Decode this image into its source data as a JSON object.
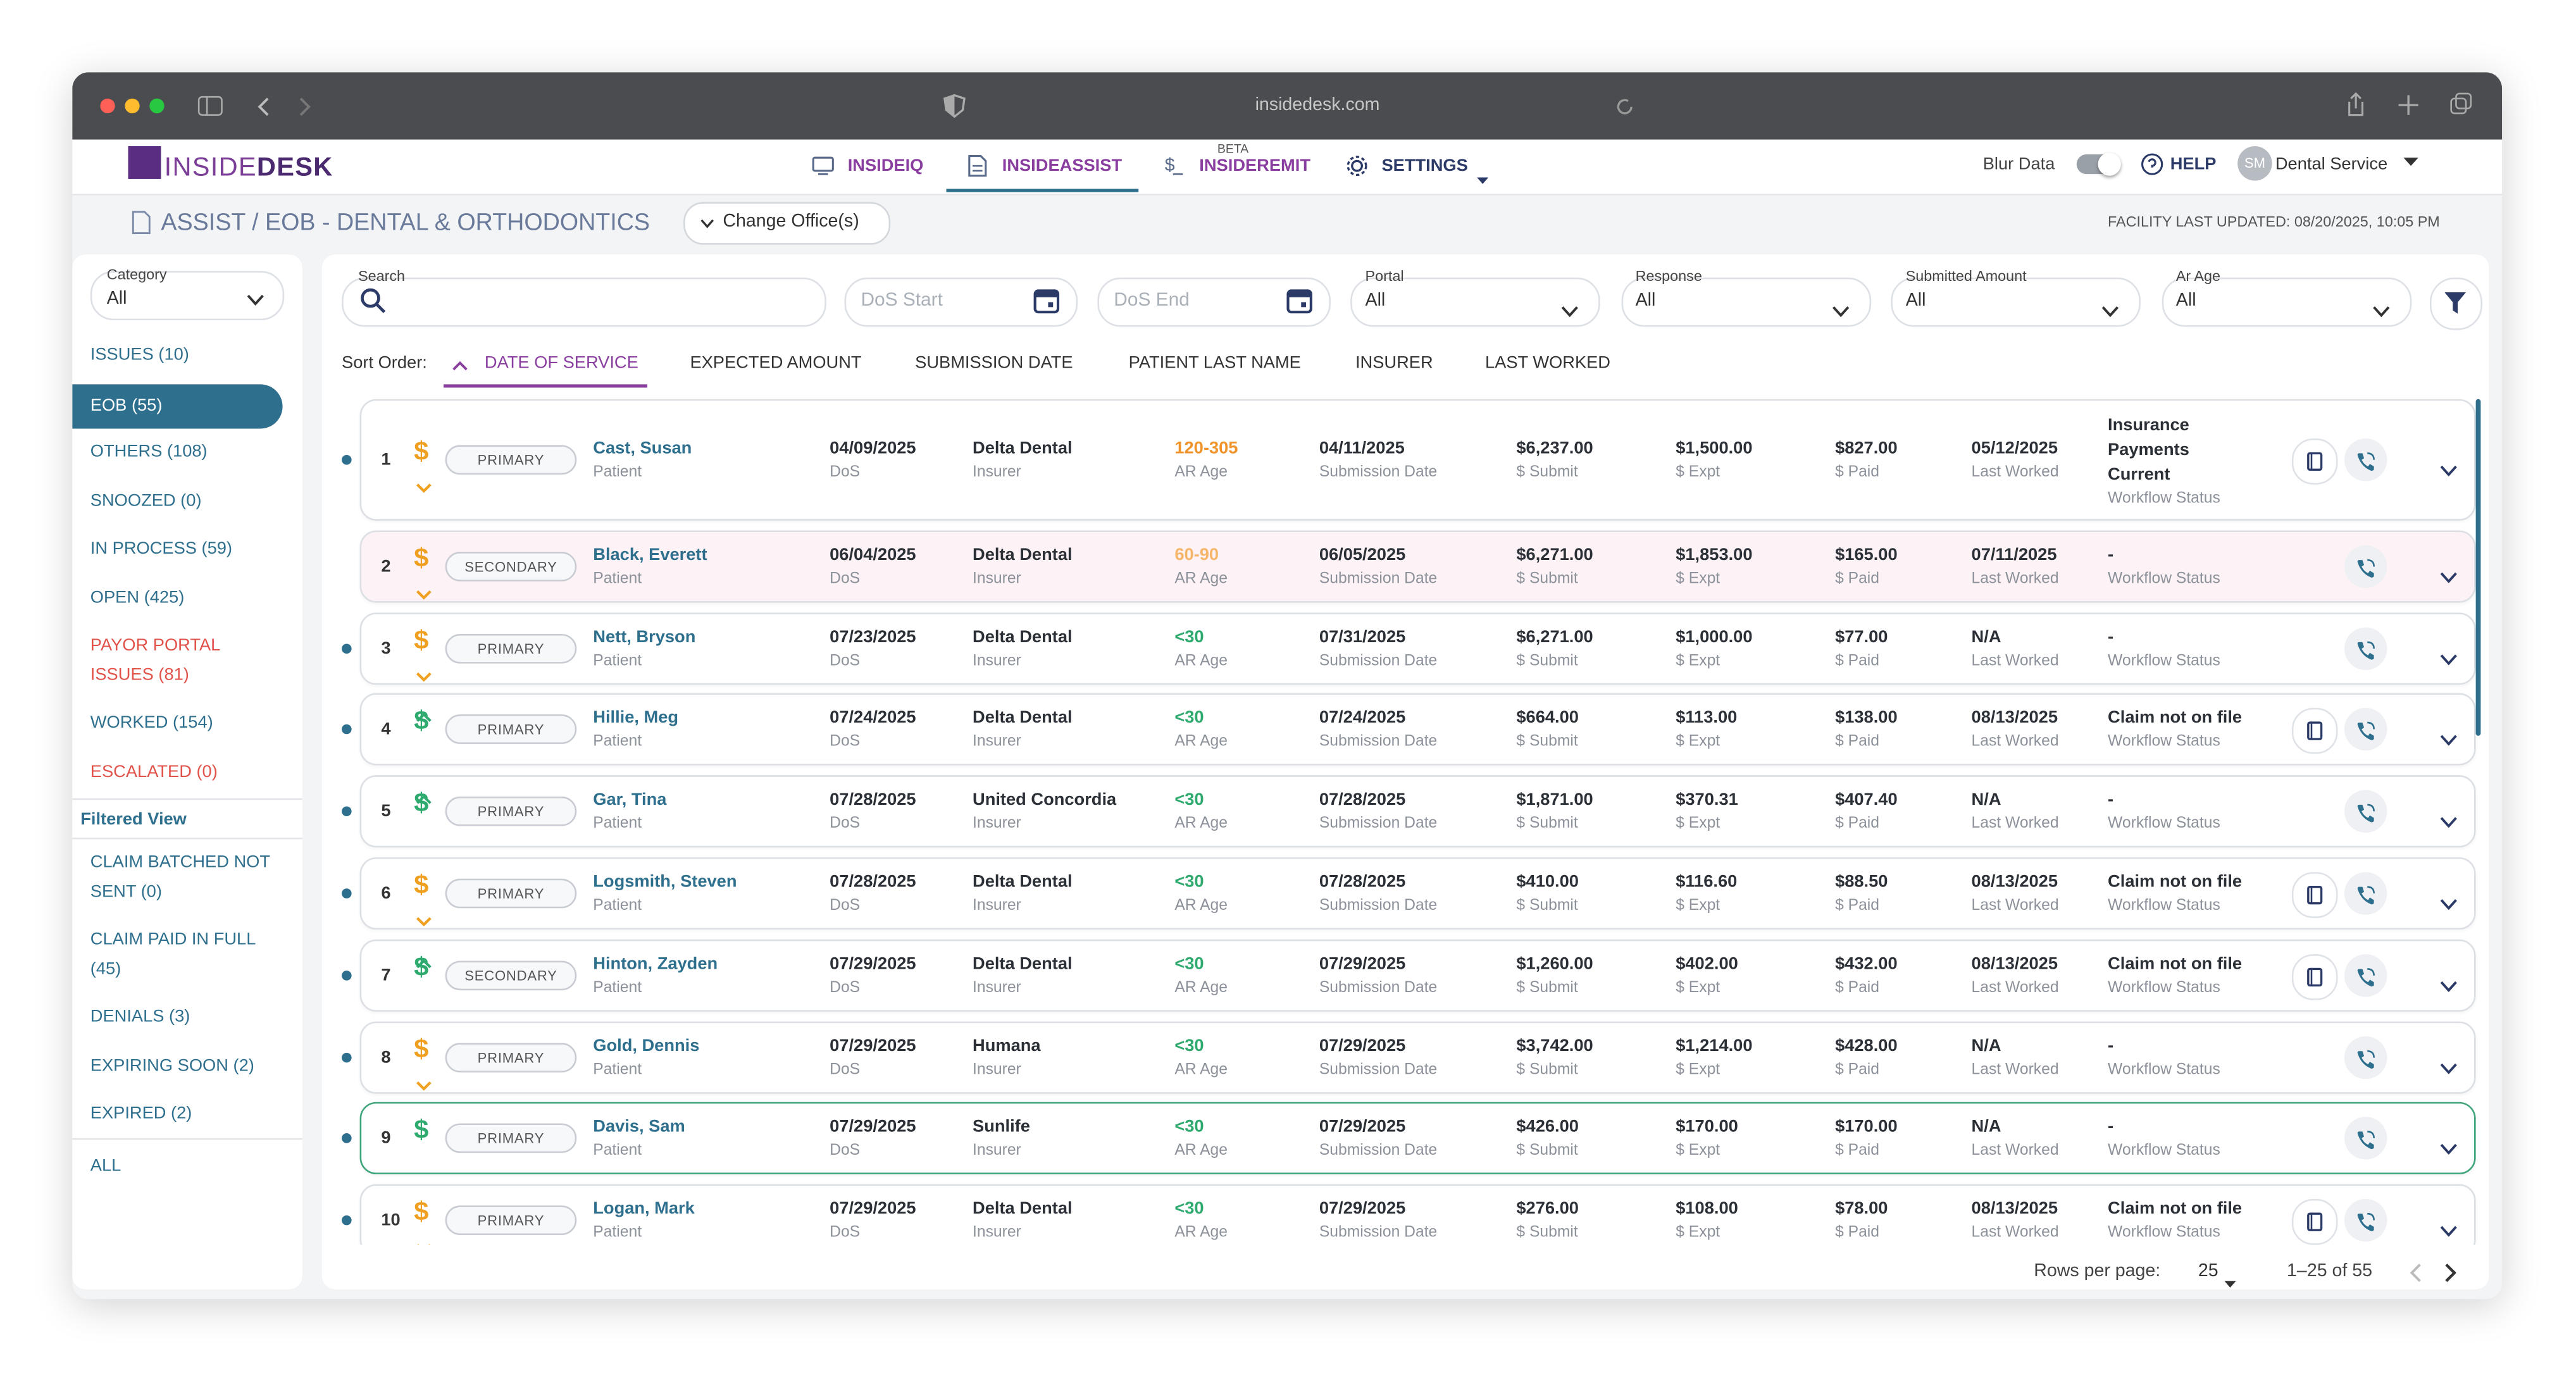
{
  "browser": {
    "url": "insidedesk.com"
  },
  "nav": {
    "logo": [
      "INSIDE",
      "DESK"
    ],
    "tabs": [
      "INSIDEIQ",
      "INSIDEASSIST",
      "INSIDEREMIT",
      "SETTINGS"
    ],
    "beta": "BETA",
    "blur": "Blur Data",
    "help": "HELP",
    "avatar": "SM",
    "user": "Dental Service"
  },
  "header": {
    "title": "ASSIST / EOB - DENTAL & ORTHODONTICS",
    "change_office": "Change Office(s)",
    "updated": "FACILITY LAST UPDATED: 08/20/2025, 10:05 PM"
  },
  "sidebar": {
    "category_label": "Category",
    "category_value": "All",
    "items": [
      {
        "label": "ISSUES (10)"
      },
      {
        "label": "EOB (55)",
        "active": true
      },
      {
        "label": "OTHERS (108)"
      },
      {
        "label": "SNOOZED (0)"
      },
      {
        "label": "IN PROCESS (59)"
      },
      {
        "label": "OPEN (425)"
      },
      {
        "label": "PAYOR PORTAL ISSUES (81)",
        "color": "#e0524a"
      },
      {
        "label": "WORKED (154)"
      },
      {
        "label": "ESCALATED (0)",
        "color": "#e0524a"
      }
    ],
    "filtered_heading": "Filtered View",
    "filtered_items": [
      "CLAIM BATCHED NOT SENT (0)",
      "CLAIM PAID IN FULL (45)",
      "DENIALS (3)",
      "EXPIRING SOON (2)",
      "EXPIRED (2)"
    ],
    "all": "ALL"
  },
  "filters": {
    "search": "Search",
    "dos_start": "DoS Start",
    "dos_end": "DoS End",
    "selects": [
      {
        "label": "Portal",
        "value": "All"
      },
      {
        "label": "Response",
        "value": "All"
      },
      {
        "label": "Submitted Amount",
        "value": "All"
      },
      {
        "label": "Ar Age",
        "value": "All"
      }
    ]
  },
  "sort": {
    "label": "Sort Order:",
    "options": [
      "DATE OF SERVICE",
      "EXPECTED AMOUNT",
      "SUBMISSION DATE",
      "PATIENT LAST NAME",
      "INSURER",
      "LAST WORKED"
    ],
    "active": 0
  },
  "table": {
    "currency_icon": "$",
    "sublabels": {
      "name": "Patient",
      "dos": "DoS",
      "insurer": "Insurer",
      "ar": "AR Age",
      "sub": "Submission Date",
      "submit": "$ Submit",
      "expt": "$ Expt",
      "paid": "$ Paid",
      "last": "Last Worked",
      "status": "Workflow Status"
    },
    "rows": [
      {
        "num": "1",
        "payer": "PRIMARY",
        "name": "Cast, Susan",
        "dos": "04/09/2025",
        "insurer": "Delta Dental",
        "ar": "120-305",
        "sub": "04/11/2025",
        "submit": "$6,237.00",
        "expt": "$1,500.00",
        "paid": "$827.00",
        "last": "05/12/2025",
        "status": "Insurance Payments Current",
        "dot": true,
        "dollar": "orange",
        "ar_color": "#f0932b",
        "doc": true
      },
      {
        "num": "2",
        "payer": "SECONDARY",
        "name": "Black, Everett",
        "dos": "06/04/2025",
        "insurer": "Delta Dental",
        "ar": "60-90",
        "sub": "06/05/2025",
        "submit": "$6,271.00",
        "expt": "$1,853.00",
        "paid": "$165.00",
        "last": "07/11/2025",
        "status": "-",
        "dot": false,
        "dollar": "orange",
        "ar_color": "#f5b66a",
        "doc": false,
        "bg": "#fdf3f6"
      },
      {
        "num": "3",
        "payer": "PRIMARY",
        "name": "Nett, Bryson",
        "dos": "07/23/2025",
        "insurer": "Delta Dental",
        "ar": "<30",
        "sub": "07/31/2025",
        "submit": "$6,271.00",
        "expt": "$1,000.00",
        "paid": "$77.00",
        "last": "N/A",
        "status": "-",
        "dot": true,
        "dollar": "orange",
        "ar_color": "#2eaa6e",
        "doc": false
      },
      {
        "num": "4",
        "payer": "PRIMARY",
        "name": "Hillie, Meg",
        "dos": "07/24/2025",
        "insurer": "Delta Dental",
        "ar": "<30",
        "sub": "07/24/2025",
        "submit": "$664.00",
        "expt": "$113.00",
        "paid": "$138.00",
        "last": "08/13/2025",
        "status": "Claim not on file",
        "dot": true,
        "dollar": "green",
        "ar_color": "#2eaa6e",
        "doc": true
      },
      {
        "num": "5",
        "payer": "PRIMARY",
        "name": "Gar, Tina",
        "dos": "07/28/2025",
        "insurer": "United Concordia",
        "ar": "<30",
        "sub": "07/28/2025",
        "submit": "$1,871.00",
        "expt": "$370.31",
        "paid": "$407.40",
        "last": "N/A",
        "status": "-",
        "dot": true,
        "dollar": "green",
        "ar_color": "#2eaa6e",
        "doc": false
      },
      {
        "num": "6",
        "payer": "PRIMARY",
        "name": "Logsmith, Steven",
        "dos": "07/28/2025",
        "insurer": "Delta Dental",
        "ar": "<30",
        "sub": "07/28/2025",
        "submit": "$410.00",
        "expt": "$116.60",
        "paid": "$88.50",
        "last": "08/13/2025",
        "status": "Claim not on file",
        "dot": true,
        "dollar": "orange",
        "ar_color": "#2eaa6e",
        "doc": true
      },
      {
        "num": "7",
        "payer": "SECONDARY",
        "name": "Hinton, Zayden",
        "dos": "07/29/2025",
        "insurer": "Delta Dental",
        "ar": "<30",
        "sub": "07/29/2025",
        "submit": "$1,260.00",
        "expt": "$402.00",
        "paid": "$432.00",
        "last": "08/13/2025",
        "status": "Claim not on file",
        "dot": true,
        "dollar": "green",
        "ar_color": "#2eaa6e",
        "doc": true
      },
      {
        "num": "8",
        "payer": "PRIMARY",
        "name": "Gold, Dennis",
        "dos": "07/29/2025",
        "insurer": "Humana",
        "ar": "<30",
        "sub": "07/29/2025",
        "submit": "$3,742.00",
        "expt": "$1,214.00",
        "paid": "$428.00",
        "last": "N/A",
        "status": "-",
        "dot": true,
        "dollar": "orange",
        "ar_color": "#2eaa6e",
        "doc": false
      },
      {
        "num": "9",
        "payer": "PRIMARY",
        "name": "Davis, Sam",
        "dos": "07/29/2025",
        "insurer": "Sunlife",
        "ar": "<30",
        "sub": "07/29/2025",
        "submit": "$426.00",
        "expt": "$170.00",
        "paid": "$170.00",
        "last": "N/A",
        "status": "-",
        "dot": true,
        "dollar": "green",
        "ar_color": "#2eaa6e",
        "doc": false,
        "border": "#3ea57a"
      },
      {
        "num": "10",
        "payer": "PRIMARY",
        "name": "Logan, Mark",
        "dos": "07/29/2025",
        "insurer": "Delta Dental",
        "ar": "<30",
        "sub": "07/29/2025",
        "submit": "$276.00",
        "expt": "$108.00",
        "paid": "$78.00",
        "last": "08/13/2025",
        "status": "Claim not on file",
        "dot": true,
        "dollar": "orange",
        "ar_color": "#2eaa6e",
        "doc": true
      }
    ]
  },
  "pagination": {
    "rows_label": "Rows per page:",
    "rows_value": "25",
    "range": "1–25 of 55"
  }
}
